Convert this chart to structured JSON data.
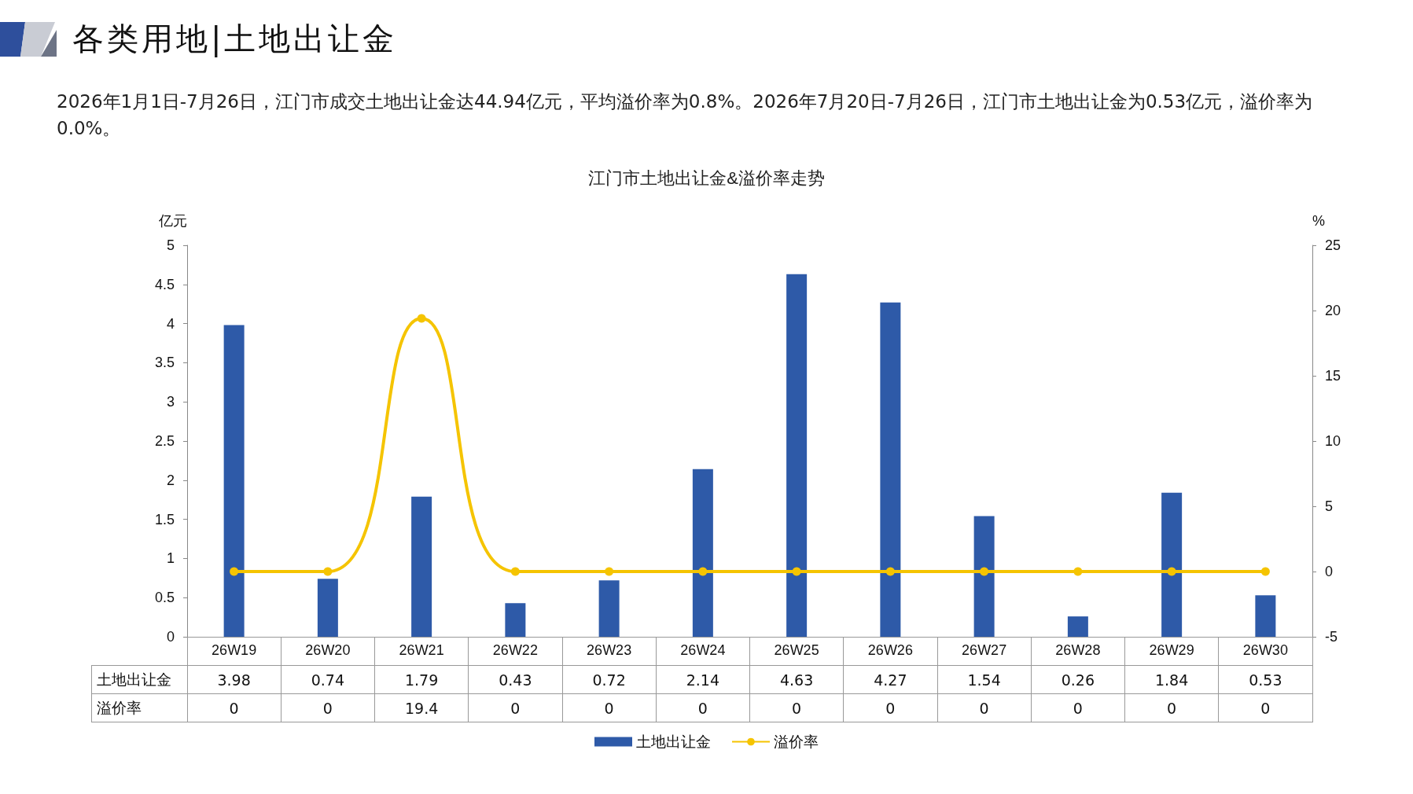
{
  "chart_data": {
    "type": "bar",
    "title": "江门市土地出让金&溢价率走势",
    "subtitle": "2026年1月1日-7月26日，江门市成交土地出让金达44.94亿元，平均溢价率为0.8%。2026年7月20日-7月26日，江门市土地出让金为0.53亿元，溢价率为0.0%。",
    "annotations": [
      "各类用地|土地出让金"
    ],
    "ylabel": "亿元",
    "y2label": "%",
    "categories": [
      "26W19",
      "26W20",
      "26W21",
      "26W22",
      "26W23",
      "26W24",
      "26W25",
      "26W26",
      "26W27",
      "26W28",
      "26W29",
      "26W30"
    ],
    "series": [
      {
        "name": "土地出让金",
        "color": "#2e5aa8",
        "values": [
          3.98,
          0.74,
          1.79,
          0.43,
          0.72,
          2.14,
          4.63,
          4.27,
          1.54,
          0.26,
          1.84,
          0.53
        ]
      },
      {
        "name": "溢价率",
        "type": "line",
        "axis": "y2",
        "color": "#f5c400",
        "values": [
          0,
          0,
          19.4,
          0,
          0,
          0,
          0,
          0,
          0,
          0,
          0,
          0
        ]
      }
    ],
    "ylim": [
      0,
      5
    ],
    "yticks": [
      0,
      0.5,
      1,
      1.5,
      2,
      2.5,
      3,
      3.5,
      4,
      4.5,
      5
    ],
    "y2lim": [
      -5,
      25
    ],
    "y2ticks": [
      -5,
      0,
      5,
      10,
      15,
      20,
      25
    ],
    "data_labels": true,
    "grid": false,
    "legend": "bottom",
    "marker": "circle",
    "line_style": "solid"
  }
}
